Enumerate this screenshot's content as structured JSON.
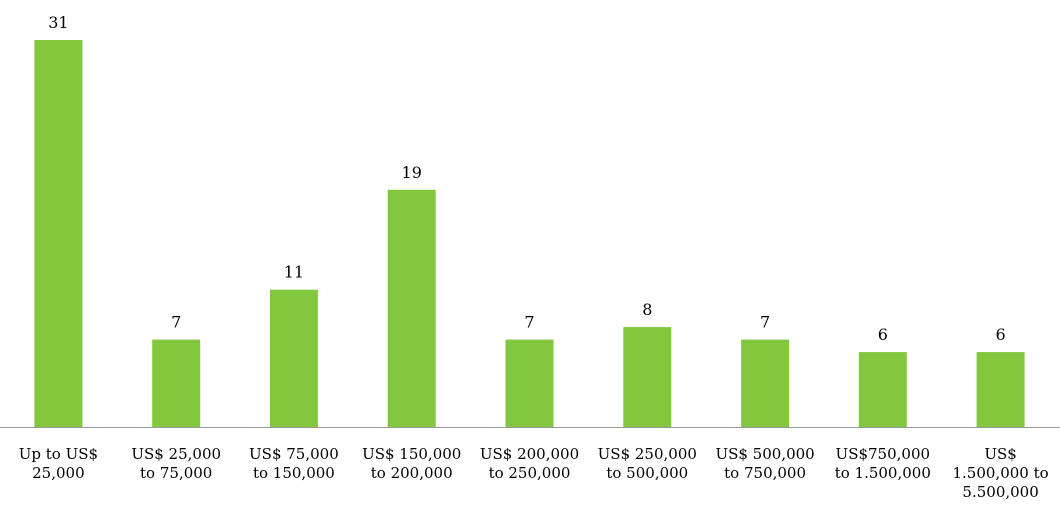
{
  "chart_data": {
    "type": "bar",
    "title": "",
    "xlabel": "",
    "ylabel": "",
    "ylim": [
      0,
      31
    ],
    "grid": false,
    "legend": "none",
    "bar_color": "#82c73e",
    "axis_color": "#999999",
    "categories": [
      [
        "Up to US$",
        "25,000"
      ],
      [
        "US$ 25,000",
        "to 75,000"
      ],
      [
        "US$ 75,000",
        "to 150,000"
      ],
      [
        "US$ 150,000",
        "to  200,000"
      ],
      [
        "US$ 200,000",
        "to 250,000"
      ],
      [
        "US$ 250,000",
        "to 500,000"
      ],
      [
        "US$ 500,000",
        "to 750,000"
      ],
      [
        "US$750,000",
        "to 1.500,000"
      ],
      [
        "US$",
        "1.500,000 to",
        "5.500,000"
      ]
    ],
    "values": [
      31,
      7,
      11,
      19,
      7,
      8,
      7,
      6,
      6
    ],
    "data_labels": [
      "31",
      "7",
      "11",
      "19",
      "7",
      "8",
      "7",
      "6",
      "6"
    ]
  }
}
